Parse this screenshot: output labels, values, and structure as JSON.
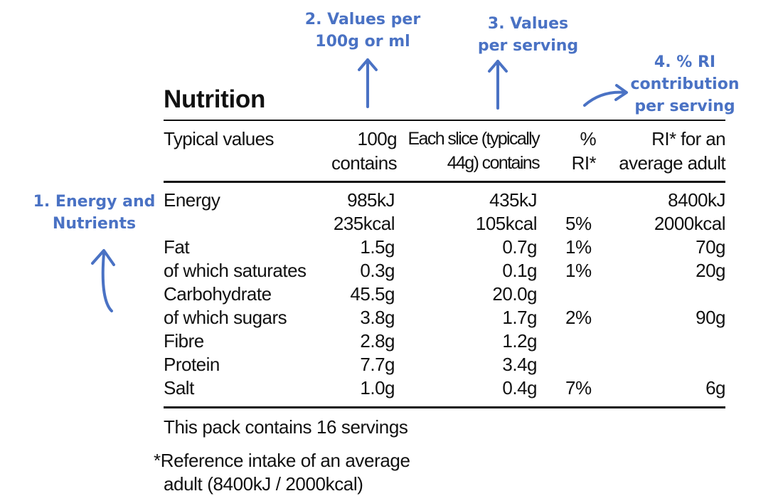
{
  "annotations": {
    "energy_nutrients": [
      "1. Energy and",
      "Nutrients"
    ],
    "per_100g": [
      "2. Values per",
      "100g or ml"
    ],
    "per_serving": [
      "3. Values",
      "per serving"
    ],
    "ri_contribution": [
      "4. % RI",
      "contribution",
      "per serving"
    ]
  },
  "label": {
    "title": "Nutrition",
    "headers": {
      "typical": "Typical values",
      "per100": [
        "100g",
        "contains"
      ],
      "serving": [
        "Each slice (typically",
        "44g) contains"
      ],
      "pct_ri": [
        "%",
        "RI*"
      ],
      "ri_adult": [
        "RI* for an",
        "average adult"
      ]
    },
    "rows": [
      {
        "name": "Energy",
        "per100": "985kJ",
        "serving": "435kJ",
        "pct": "",
        "ri": "8400kJ"
      },
      {
        "name": "",
        "per100": "235kcal",
        "serving": "105kcal",
        "pct": "5%",
        "ri": "2000kcal"
      },
      {
        "name": "Fat",
        "per100": "1.5g",
        "serving": "0.7g",
        "pct": "1%",
        "ri": "70g"
      },
      {
        "name": "of which saturates",
        "per100": "0.3g",
        "serving": "0.1g",
        "pct": "1%",
        "ri": "20g"
      },
      {
        "name": "Carbohydrate",
        "per100": "45.5g",
        "serving": "20.0g",
        "pct": "",
        "ri": ""
      },
      {
        "name": "of which sugars",
        "per100": "3.8g",
        "serving": "1.7g",
        "pct": "2%",
        "ri": "90g"
      },
      {
        "name": "Fibre",
        "per100": "2.8g",
        "serving": "1.2g",
        "pct": "",
        "ri": ""
      },
      {
        "name": "Protein",
        "per100": "7.7g",
        "serving": "3.4g",
        "pct": "",
        "ri": ""
      },
      {
        "name": "Salt",
        "per100": "1.0g",
        "serving": "0.4g",
        "pct": "7%",
        "ri": "6g"
      }
    ],
    "pack_note": "This pack contains 16 servings",
    "reference_note": [
      "*Reference intake of an average",
      "adult (8400kJ / 2000kcal)"
    ]
  },
  "colors": {
    "annotation": "#4a72c4",
    "text": "#111111"
  },
  "icons": [
    "arrow-up-icon",
    "arrow-up-icon",
    "arrow-up-icon",
    "curved-arrow-right-icon"
  ]
}
